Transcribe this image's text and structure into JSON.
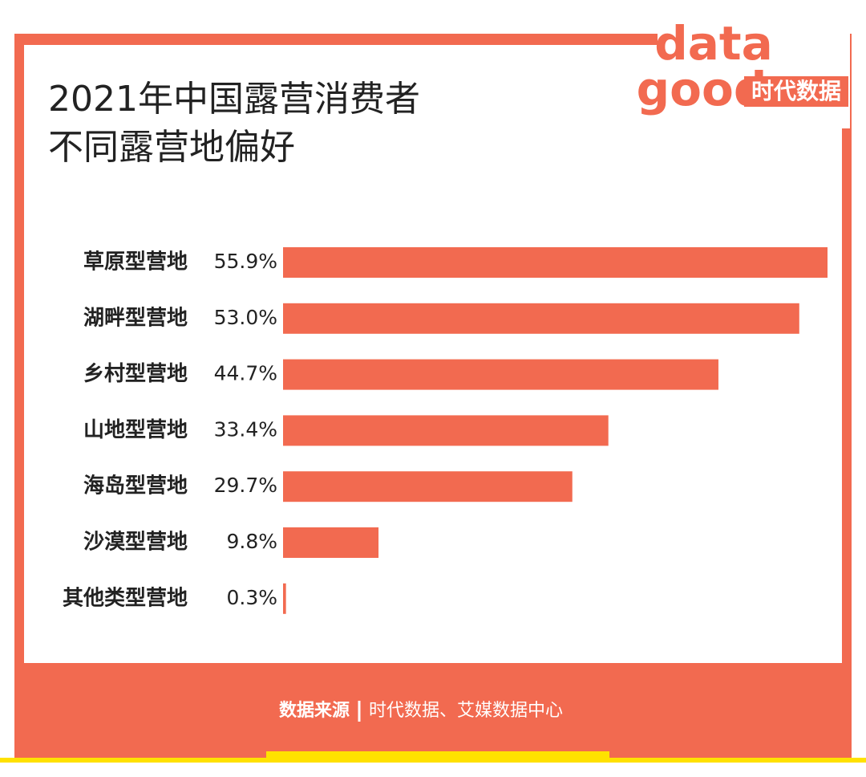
{
  "chart_data": {
    "type": "bar",
    "orientation": "horizontal",
    "title": [
      "2021年中国露营消费者",
      "不同露营地偏好"
    ],
    "categories": [
      "草原型营地",
      "湖畔型营地",
      "乡村型营地",
      "山地型营地",
      "海岛型营地",
      "沙漠型营地",
      "其他类型营地"
    ],
    "values": [
      55.9,
      53.0,
      44.7,
      33.4,
      29.7,
      9.8,
      0.3
    ],
    "value_labels": [
      "55.9%",
      "53.0%",
      "44.7%",
      "33.4%",
      "29.7%",
      "9.8%",
      "0.3%"
    ],
    "color": "#f26a50",
    "xlim": [
      0,
      55.9
    ],
    "source_label": "数据来源",
    "source": "时代数据、艾媒数据中心",
    "logo": {
      "line1": "data",
      "line2": "good",
      "brand": "时代数据"
    }
  }
}
